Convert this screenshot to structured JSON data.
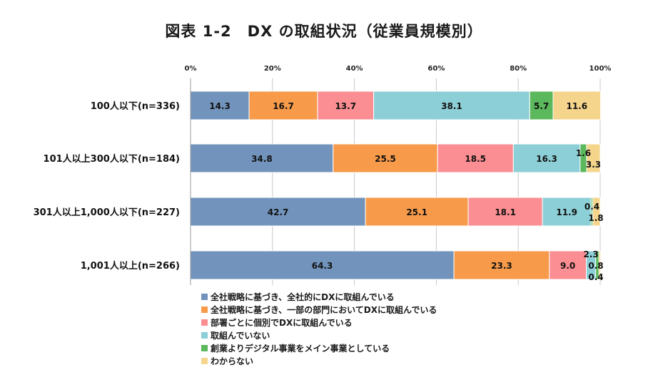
{
  "chart_data": {
    "type": "bar",
    "orientation": "horizontal",
    "stacked": true,
    "title": "図表 1-2　DX の取組状況（従業員規模別）",
    "xlim": [
      0,
      100
    ],
    "xticks": [
      "0%",
      "20%",
      "40%",
      "60%",
      "80%",
      "100%"
    ],
    "categories": [
      "100人以下(n=336)",
      "101人以上300人以下(n=184)",
      "301人以上1,000人以下(n=227)",
      "1,001人以上(n=266)"
    ],
    "legend_position": "bottom",
    "series": [
      {
        "name": "全社戦略に基づき、全社的にDXに取組んでいる",
        "color": "#7294bc",
        "values": [
          14.3,
          34.8,
          42.7,
          64.3
        ],
        "labels": [
          "14.3",
          "34.8",
          "42.7",
          "64.3"
        ]
      },
      {
        "name": "全社戦略に基づき、一部の部門においてDXに取組んでいる",
        "color": "#f79a4a",
        "values": [
          16.7,
          25.5,
          25.1,
          23.3
        ],
        "labels": [
          "16.7",
          "25.5",
          "25.1",
          "23.3"
        ]
      },
      {
        "name": "部署ごとに個別でDXに取組んでいる",
        "color": "#fa8e92",
        "values": [
          13.7,
          18.5,
          18.1,
          9.0
        ],
        "labels": [
          "13.7",
          "18.5",
          "18.1",
          "9.0"
        ]
      },
      {
        "name": "取組んでいない",
        "color": "#8dcfd7",
        "values": [
          38.1,
          16.3,
          11.9,
          2.3
        ],
        "labels": [
          "38.1",
          "16.3",
          "11.9",
          "2.3"
        ]
      },
      {
        "name": "創業よりデジタル事業をメイン事業としている",
        "color": "#5cb85c",
        "values": [
          5.7,
          1.6,
          0.4,
          0.8
        ],
        "labels": [
          "5.7",
          "1.6",
          "0.4",
          "0.8"
        ]
      },
      {
        "name": "わからない",
        "color": "#f5d48c",
        "values": [
          11.6,
          3.3,
          1.8,
          0.4
        ],
        "labels": [
          "11.6",
          "3.3",
          "1.8",
          "0.4"
        ]
      }
    ]
  }
}
